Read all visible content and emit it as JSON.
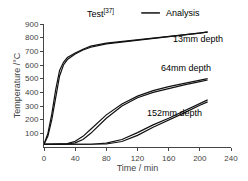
{
  "chart_data": {
    "type": "line",
    "x_label": "Time / min",
    "y_label": "Temperature /°C",
    "xlim": [
      0,
      240
    ],
    "ylim": [
      0,
      900
    ],
    "xticks": [
      0,
      40,
      80,
      120,
      160,
      200,
      240
    ],
    "yticks": [
      100,
      200,
      300,
      400,
      500,
      600,
      700,
      800,
      900
    ],
    "grid": false,
    "series": [
      {
        "color": "#111111",
        "x": [
          0,
          5,
          10,
          15,
          20,
          25,
          30,
          35,
          40,
          50,
          60,
          80,
          100,
          120,
          140,
          160,
          180,
          200,
          210
        ],
        "values": [
          20,
          80,
          200,
          370,
          520,
          600,
          640,
          660,
          680,
          710,
          730,
          755,
          768,
          778,
          790,
          805,
          818,
          830,
          840
        ]
      },
      {
        "color": "#111111",
        "x": [
          0,
          5,
          10,
          15,
          20,
          25,
          30,
          35,
          40,
          50,
          60,
          80,
          100,
          120,
          140,
          160,
          180,
          200,
          210
        ],
        "values": [
          20,
          100,
          240,
          420,
          560,
          620,
          655,
          672,
          688,
          715,
          738,
          760,
          772,
          782,
          793,
          808,
          820,
          833,
          843
        ]
      },
      {
        "color": "#111111",
        "x": [
          0,
          10,
          20,
          30,
          40,
          50,
          60,
          80,
          100,
          120,
          140,
          160,
          180,
          200,
          210
        ],
        "values": [
          20,
          20,
          20,
          22,
          30,
          55,
          100,
          210,
          300,
          360,
          400,
          430,
          455,
          478,
          490
        ]
      },
      {
        "color": "#111111",
        "x": [
          0,
          10,
          20,
          30,
          40,
          50,
          60,
          80,
          100,
          120,
          140,
          160,
          180,
          200,
          210
        ],
        "values": [
          20,
          20,
          20,
          25,
          42,
          78,
          130,
          235,
          315,
          372,
          412,
          442,
          465,
          488,
          500
        ]
      },
      {
        "color": "#111111",
        "x": [
          0,
          20,
          40,
          60,
          80,
          100,
          120,
          140,
          160,
          180,
          200,
          210
        ],
        "values": [
          20,
          20,
          20,
          20,
          22,
          40,
          85,
          145,
          195,
          250,
          305,
          330
        ]
      },
      {
        "color": "#111111",
        "x": [
          0,
          20,
          40,
          60,
          80,
          100,
          120,
          140,
          160,
          180,
          200,
          210
        ],
        "values": [
          20,
          20,
          20,
          20,
          28,
          55,
          105,
          162,
          210,
          262,
          318,
          345
        ]
      }
    ],
    "annotations": [
      {
        "text": "13mm depth",
        "x": 163,
        "y": 740
      },
      {
        "text": "64mm depth",
        "x": 148,
        "y": 530
      },
      {
        "text": "152mm depth",
        "x": 130,
        "y": 195
      },
      {
        "text": "Test"
      },
      {
        "text": "[37]"
      },
      {
        "text": "Analysis"
      }
    ]
  }
}
